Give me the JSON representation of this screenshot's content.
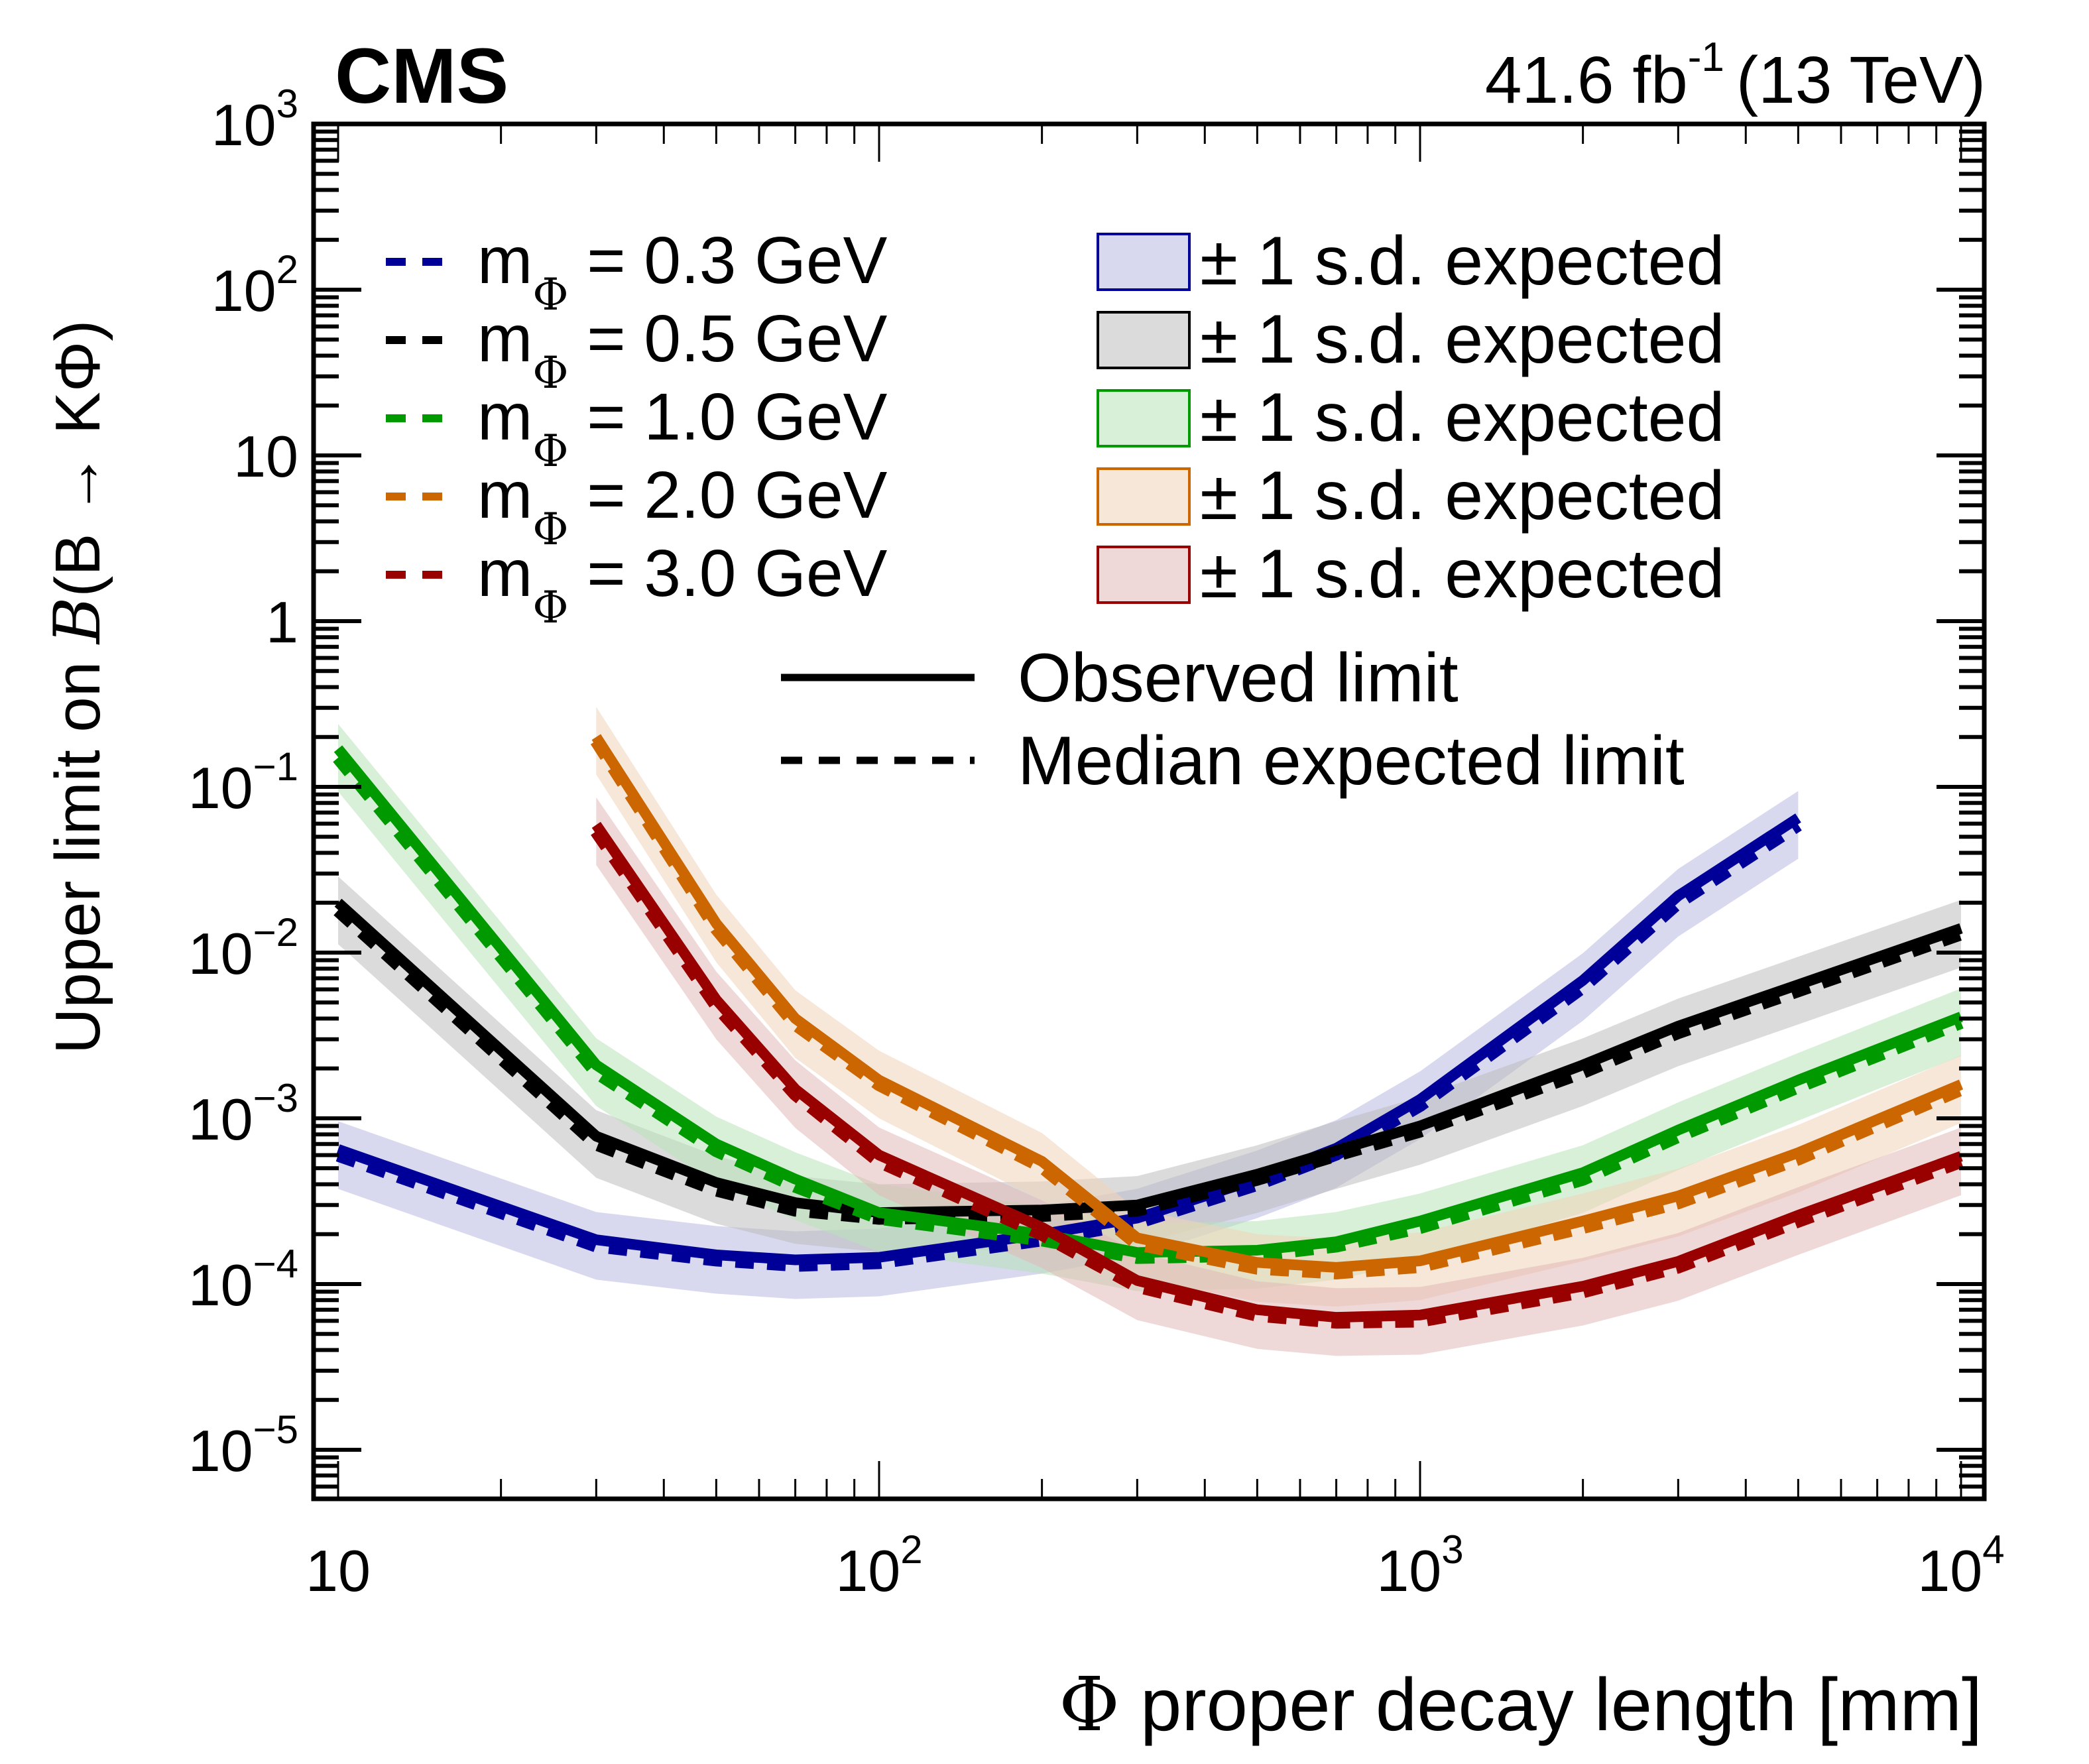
{
  "chart_data": {
    "type": "line",
    "experiment_label": "CMS",
    "lumi_label": {
      "value": "41.6 fb",
      "superscript": "-1",
      "energy": "(13 TeV)"
    },
    "xlabel": "Φ proper decay length [mm]",
    "ylabel": {
      "prefix": "Upper limit on ",
      "symbol": "B",
      "suffix": "(B → KΦ)"
    },
    "xscale": "log",
    "yscale": "log",
    "xlim": [
      9,
      11000
    ],
    "ylim": [
      5e-06,
      1000
    ],
    "x_ticks": [
      {
        "value": 10,
        "base": "10",
        "exp": ""
      },
      {
        "value": 100,
        "base": "10",
        "exp": "2"
      },
      {
        "value": 1000,
        "base": "10",
        "exp": "3"
      },
      {
        "value": 10000,
        "base": "10",
        "exp": "4"
      }
    ],
    "y_ticks": [
      {
        "value": 1000,
        "base": "10",
        "exp": "3"
      },
      {
        "value": 100,
        "base": "10",
        "exp": "2"
      },
      {
        "value": 10,
        "base": "10",
        "exp": ""
      },
      {
        "value": 1,
        "base": "1",
        "exp": ""
      },
      {
        "value": 0.1,
        "base": "10",
        "exp": "−1"
      },
      {
        "value": 0.01,
        "base": "10",
        "exp": "−2"
      },
      {
        "value": 0.001,
        "base": "10",
        "exp": "−3"
      },
      {
        "value": 0.0001,
        "base": "10",
        "exp": "−4"
      },
      {
        "value": 1e-05,
        "base": "10",
        "exp": "−5"
      }
    ],
    "grid": false,
    "legend_placement": "top",
    "band_label": "± 1 s.d. expected",
    "style_legend": [
      {
        "label": "Observed limit",
        "style": "solid"
      },
      {
        "label": "Median expected limit",
        "style": "dashed"
      }
    ],
    "series": [
      {
        "name": "m_Φ = 0.3 GeV",
        "label_parts": {
          "m": "m",
          "sub": "Φ",
          "rest": " = 0.3 GeV"
        },
        "color": "#000099",
        "x": [
          10,
          30,
          50,
          70,
          100,
          200,
          300,
          500,
          700,
          1000,
          2000,
          3000,
          5000
        ],
        "observed": [
          0.00065,
          0.000185,
          0.00015,
          0.00014,
          0.000145,
          0.0002,
          0.00025,
          0.00043,
          0.00066,
          0.0013,
          0.0068,
          0.022,
          0.065
        ],
        "expected": [
          0.0006,
          0.00017,
          0.00014,
          0.00013,
          0.000135,
          0.000185,
          0.000235,
          0.0004,
          0.00061,
          0.0012,
          0.0062,
          0.02,
          0.059
        ],
        "band_factor": 1.6
      },
      {
        "name": "m_Φ = 0.5 GeV",
        "label_parts": {
          "m": "m",
          "sub": "Φ",
          "rest": " = 0.5 GeV"
        },
        "color": "#000000",
        "x": [
          10,
          30,
          50,
          70,
          100,
          200,
          300,
          500,
          700,
          1000,
          2000,
          3000,
          5000,
          10000
        ],
        "observed": [
          0.02,
          0.00078,
          0.00041,
          0.00031,
          0.00027,
          0.00028,
          0.0003,
          0.00046,
          0.00064,
          0.0009,
          0.0021,
          0.0036,
          0.0064,
          0.014
        ],
        "expected": [
          0.018,
          0.0007,
          0.00037,
          0.00028,
          0.00025,
          0.00026,
          0.00028,
          0.00043,
          0.0006,
          0.00084,
          0.0019,
          0.0033,
          0.0059,
          0.013
        ],
        "band_factor": 1.6
      },
      {
        "name": "m_Φ = 1.0 GeV",
        "label_parts": {
          "m": "m",
          "sub": "Φ",
          "rest": " = 1.0 GeV"
        },
        "color": "#009900",
        "x": [
          10,
          30,
          50,
          70,
          100,
          200,
          300,
          500,
          700,
          1000,
          2000,
          3000,
          5000,
          10000
        ],
        "observed": [
          0.17,
          0.0021,
          0.0007,
          0.00043,
          0.00027,
          0.0002,
          0.000155,
          0.00016,
          0.00018,
          0.00024,
          0.00047,
          0.00085,
          0.0017,
          0.0041
        ],
        "expected": [
          0.15,
          0.0019,
          0.00064,
          0.00039,
          0.00025,
          0.000185,
          0.000145,
          0.00015,
          0.00017,
          0.00022,
          0.00043,
          0.00078,
          0.00155,
          0.0038
        ],
        "band_factor": 1.6
      },
      {
        "name": "m_Φ = 2.0 GeV",
        "label_parts": {
          "m": "m",
          "sub": "Φ",
          "rest": " = 2.0 GeV"
        },
        "color": "#cc6600",
        "x": [
          30,
          50,
          70,
          100,
          200,
          300,
          500,
          700,
          1000,
          2000,
          3000,
          5000,
          10000
        ],
        "observed": [
          0.2,
          0.015,
          0.004,
          0.0017,
          0.00055,
          0.00019,
          0.000135,
          0.000126,
          0.000138,
          0.00024,
          0.00034,
          0.00062,
          0.0016
        ],
        "expected": [
          0.19,
          0.014,
          0.0037,
          0.0016,
          0.00051,
          0.000175,
          0.000125,
          0.000117,
          0.000128,
          0.00022,
          0.00031,
          0.00057,
          0.0015
        ],
        "band_factor": 1.6
      },
      {
        "name": "m_Φ = 3.0 GeV",
        "label_parts": {
          "m": "m",
          "sub": "Φ",
          "rest": " = 3.0 GeV"
        },
        "color": "#990000",
        "x": [
          30,
          50,
          70,
          100,
          200,
          300,
          500,
          700,
          1000,
          2000,
          3000,
          5000,
          10000
        ],
        "observed": [
          0.059,
          0.0052,
          0.0015,
          0.0006,
          0.00022,
          0.000105,
          7e-05,
          6.3e-05,
          6.5e-05,
          9.7e-05,
          0.000137,
          0.00026,
          0.00059
        ],
        "expected": [
          0.054,
          0.0048,
          0.0014,
          0.00055,
          0.0002,
          9.7e-05,
          6.5e-05,
          5.9e-05,
          6e-05,
          9e-05,
          0.000127,
          0.00024,
          0.00055
        ],
        "band_factor": 1.6
      }
    ]
  }
}
